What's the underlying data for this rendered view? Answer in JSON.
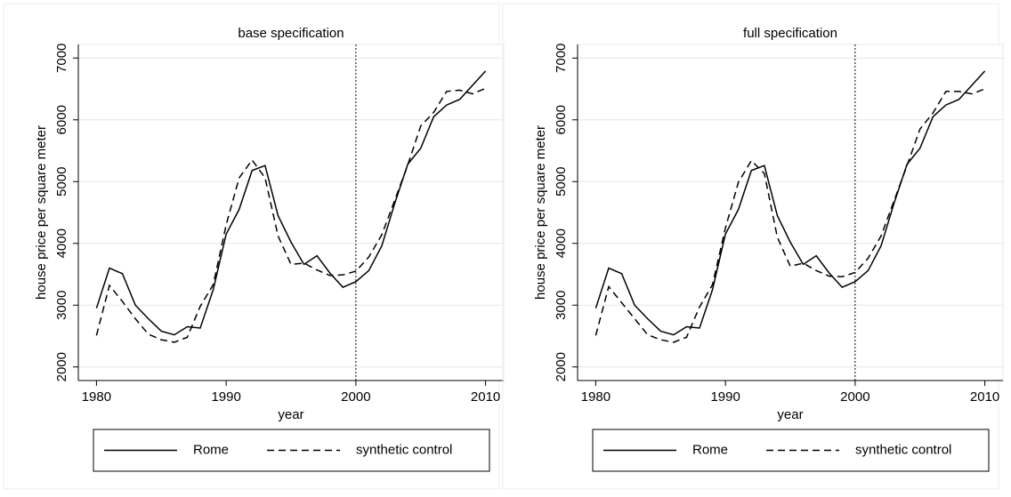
{
  "chart_data": [
    {
      "type": "line",
      "title": "base specification",
      "xlabel": "year",
      "ylabel": "house price per square meter",
      "x": [
        1980,
        1981,
        1982,
        1983,
        1984,
        1985,
        1986,
        1987,
        1988,
        1989,
        1990,
        1991,
        1992,
        1993,
        1994,
        1995,
        1996,
        1997,
        1998,
        1999,
        2000,
        2001,
        2002,
        2003,
        2004,
        2005,
        2006,
        2007,
        2008,
        2009,
        2010
      ],
      "series": [
        {
          "name": "Rome",
          "color": "#000000",
          "style": "solid",
          "values": [
            2950,
            3600,
            3510,
            3000,
            2780,
            2580,
            2520,
            2650,
            2630,
            3250,
            4150,
            4550,
            5180,
            5260,
            4450,
            4020,
            3660,
            3800,
            3520,
            3290,
            3380,
            3560,
            3960,
            4650,
            5280,
            5540,
            6050,
            6240,
            6330,
            6560,
            6790
          ]
        },
        {
          "name": "synthetic control",
          "color": "#000000",
          "style": "dashed",
          "values": [
            2510,
            3320,
            3060,
            2780,
            2530,
            2440,
            2400,
            2480,
            2980,
            3330,
            4300,
            5060,
            5350,
            5060,
            4120,
            3660,
            3680,
            3570,
            3480,
            3490,
            3550,
            3780,
            4140,
            4700,
            5270,
            5900,
            6120,
            6460,
            6480,
            6420,
            6510
          ]
        }
      ],
      "xlim": [
        1978.6,
        2011.4
      ],
      "xticks": [
        1980,
        1990,
        2000,
        2010
      ],
      "ylim": [
        1780,
        7220
      ],
      "yticks": [
        2000,
        3000,
        4000,
        5000,
        6000,
        7000
      ],
      "grid": true,
      "vline": 2000,
      "legend": "bottom"
    },
    {
      "type": "line",
      "title": "full specification",
      "xlabel": "year",
      "ylabel": "house price per square meter",
      "x": [
        1980,
        1981,
        1982,
        1983,
        1984,
        1985,
        1986,
        1987,
        1988,
        1989,
        1990,
        1991,
        1992,
        1993,
        1994,
        1995,
        1996,
        1997,
        1998,
        1999,
        2000,
        2001,
        2002,
        2003,
        2004,
        2005,
        2006,
        2007,
        2008,
        2009,
        2010
      ],
      "series": [
        {
          "name": "Rome",
          "color": "#000000",
          "style": "solid",
          "values": [
            2950,
            3600,
            3510,
            3000,
            2780,
            2580,
            2520,
            2650,
            2630,
            3250,
            4150,
            4550,
            5180,
            5260,
            4450,
            4020,
            3660,
            3800,
            3520,
            3290,
            3380,
            3560,
            3960,
            4650,
            5280,
            5540,
            6050,
            6240,
            6330,
            6560,
            6790
          ]
        },
        {
          "name": "synthetic control",
          "color": "#000000",
          "style": "dashed",
          "values": [
            2510,
            3300,
            3040,
            2780,
            2520,
            2440,
            2400,
            2480,
            2970,
            3330,
            4250,
            4990,
            5340,
            5130,
            4100,
            3630,
            3680,
            3560,
            3470,
            3460,
            3530,
            3760,
            4120,
            4690,
            5260,
            5850,
            6110,
            6460,
            6460,
            6420,
            6500
          ]
        }
      ],
      "xlim": [
        1978.6,
        2011.4
      ],
      "xticks": [
        1980,
        1990,
        2000,
        2010
      ],
      "ylim": [
        1780,
        7220
      ],
      "yticks": [
        2000,
        3000,
        4000,
        5000,
        6000,
        7000
      ],
      "grid": true,
      "vline": 2000,
      "legend": "bottom"
    }
  ]
}
